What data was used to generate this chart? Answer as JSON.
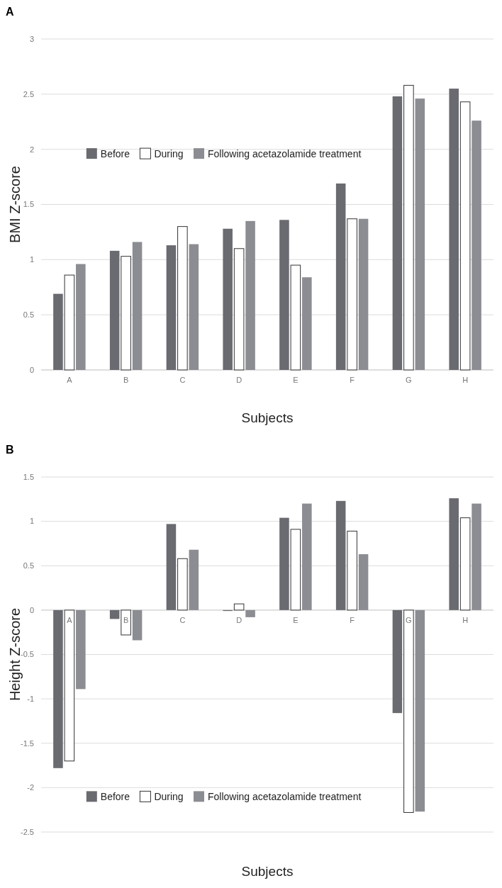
{
  "chart_data": [
    {
      "type": "bar",
      "title": "A",
      "xlabel": "Subjects",
      "ylabel": "BMI Z-score",
      "categories": [
        "A",
        "B",
        "C",
        "D",
        "E",
        "F",
        "G",
        "H"
      ],
      "series": [
        {
          "name": "Before",
          "color": "#6a6b70",
          "values": [
            0.69,
            1.08,
            1.13,
            1.28,
            1.36,
            1.69,
            2.48,
            2.55
          ]
        },
        {
          "name": "During",
          "color": "#ffffff",
          "values": [
            0.86,
            1.03,
            1.3,
            1.1,
            0.95,
            1.37,
            2.58,
            2.43
          ]
        },
        {
          "name": "Following acetazolamide treatment",
          "color": "#8c8d92",
          "values": [
            0.96,
            1.16,
            1.14,
            1.35,
            0.84,
            1.37,
            2.46,
            2.26
          ]
        }
      ],
      "ylim": [
        0,
        3
      ],
      "yticks": [
        0,
        0.5,
        1,
        1.5,
        2,
        2.5,
        3
      ],
      "grid": "y",
      "legend": "top left"
    },
    {
      "type": "bar",
      "title": "B",
      "xlabel": "Subjects",
      "ylabel": "Height Z-score",
      "categories": [
        "A",
        "B",
        "C",
        "D",
        "E",
        "F",
        "G",
        "H"
      ],
      "series": [
        {
          "name": "Before",
          "color": "#6a6b70",
          "values": [
            -1.78,
            -0.1,
            0.97,
            -0.01,
            1.04,
            1.23,
            -1.16,
            1.26
          ]
        },
        {
          "name": "During",
          "color": "#ffffff",
          "values": [
            -1.7,
            -0.28,
            0.58,
            0.07,
            0.91,
            0.89,
            -2.28,
            1.04
          ]
        },
        {
          "name": "Following acetazolamide treatment",
          "color": "#8c8d92",
          "values": [
            -0.89,
            -0.34,
            0.68,
            -0.08,
            1.2,
            0.63,
            -2.27,
            1.2
          ]
        }
      ],
      "ylim": [
        -2.5,
        1.5
      ],
      "yticks": [
        -2.5,
        -2,
        -1.5,
        -1,
        -0.5,
        0,
        0.5,
        1,
        1.5
      ],
      "grid": "y",
      "legend": "bottom left"
    }
  ]
}
